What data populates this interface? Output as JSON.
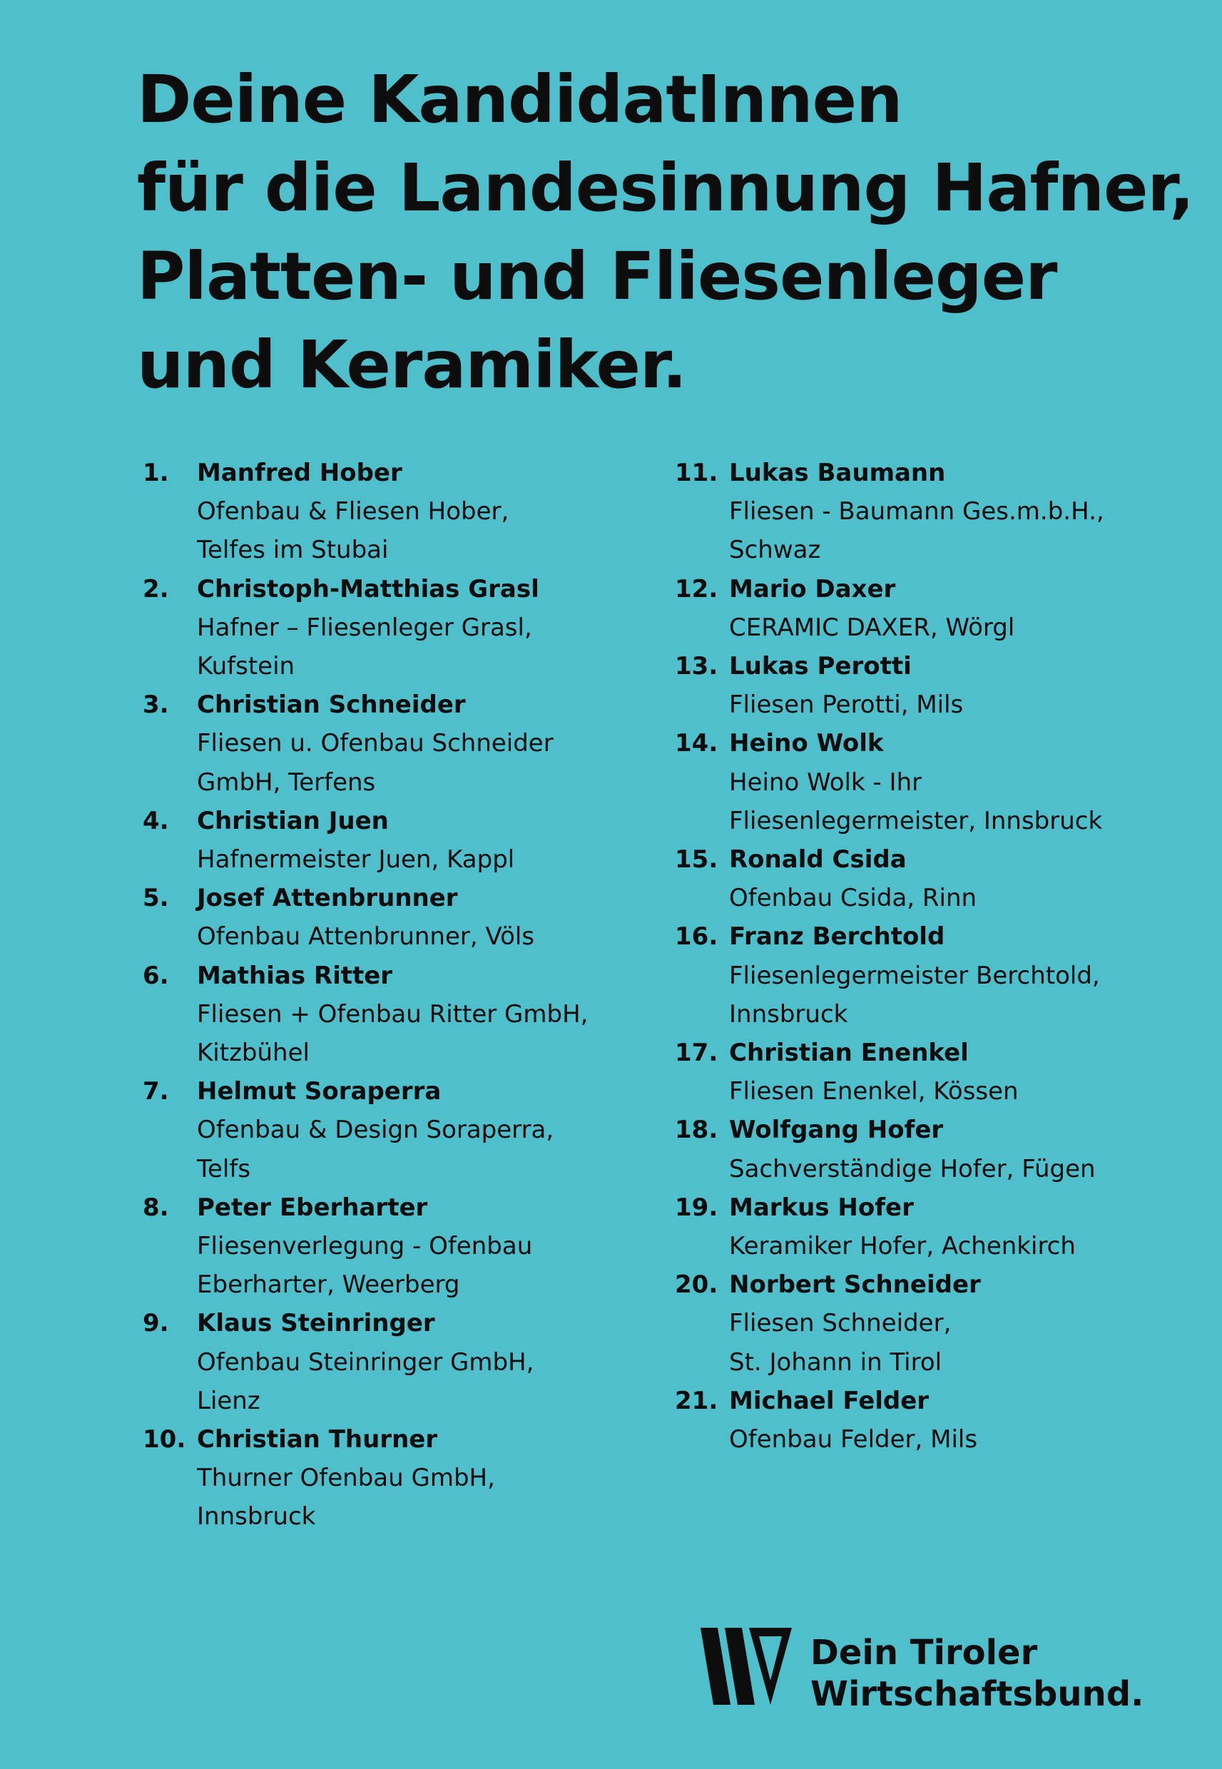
{
  "headline": {
    "lines": [
      "Deine KandidatInnen",
      "für die Landesinnung Hafner,",
      "Platten- und Fliesenleger",
      "und Keramiker."
    ]
  },
  "colors": {
    "background": "#4fbfcc",
    "text": "#0d0d0d"
  },
  "candidates": [
    {
      "num": "1.",
      "name": "Manfred Hober",
      "lines": [
        "Ofenbau & Fliesen Hober,",
        "Telfes im Stubai"
      ]
    },
    {
      "num": "2.",
      "name": "Christoph-Matthias Grasl",
      "lines": [
        "Hafner – Fliesenleger Grasl,",
        "Kufstein"
      ]
    },
    {
      "num": "3.",
      "name": "Christian Schneider",
      "lines": [
        "Fliesen u. Ofenbau Schneider",
        "GmbH, Terfens"
      ]
    },
    {
      "num": "4.",
      "name": "Christian Juen",
      "lines": [
        "Hafnermeister Juen, Kappl"
      ]
    },
    {
      "num": "5.",
      "name": "Josef Attenbrunner",
      "lines": [
        "Ofenbau Attenbrunner, Völs"
      ]
    },
    {
      "num": "6.",
      "name": "Mathias Ritter",
      "lines": [
        "Fliesen + Ofenbau Ritter GmbH,",
        "Kitzbühel"
      ]
    },
    {
      "num": "7.",
      "name": "Helmut Soraperra",
      "lines": [
        "Ofenbau & Design Soraperra,",
        "Telfs"
      ]
    },
    {
      "num": "8.",
      "name": "Peter Eberharter",
      "lines": [
        "Fliesenverlegung - Ofenbau",
        "Eberharter, Weerberg"
      ]
    },
    {
      "num": "9.",
      "name": "Klaus Steinringer",
      "lines": [
        "Ofenbau Steinringer GmbH,",
        "Lienz"
      ]
    },
    {
      "num": "10.",
      "name": "Christian Thurner",
      "lines": [
        "Thurner Ofenbau GmbH,",
        "Innsbruck"
      ]
    },
    {
      "num": "11.",
      "name": "Lukas Baumann",
      "lines": [
        "Fliesen - Baumann Ges.m.b.H.,",
        "Schwaz"
      ]
    },
    {
      "num": "12.",
      "name": "Mario Daxer",
      "lines": [
        "CERAMIC DAXER, Wörgl"
      ]
    },
    {
      "num": "13.",
      "name": "Lukas Perotti",
      "lines": [
        "Fliesen Perotti, Mils"
      ]
    },
    {
      "num": "14.",
      "name": "Heino Wolk",
      "lines": [
        "Heino Wolk - Ihr",
        "Fliesenlegermeister, Innsbruck"
      ]
    },
    {
      "num": "15.",
      "name": "Ronald Csida",
      "lines": [
        "Ofenbau Csida, Rinn"
      ]
    },
    {
      "num": "16.",
      "name": "Franz Berchtold",
      "lines": [
        "Fliesenlegermeister Berchtold,",
        "Innsbruck"
      ]
    },
    {
      "num": "17.",
      "name": "Christian Enenkel",
      "lines": [
        "Fliesen Enenkel, Kössen"
      ]
    },
    {
      "num": "18.",
      "name": "Wolfgang Hofer",
      "lines": [
        "Sachverständige Hofer, Fügen"
      ]
    },
    {
      "num": "19.",
      "name": "Markus Hofer",
      "lines": [
        "Keramiker Hofer, Achenkirch"
      ]
    },
    {
      "num": "20.",
      "name": "Norbert Schneider",
      "lines": [
        "Fliesen Schneider,",
        "St. Johann in Tirol"
      ]
    },
    {
      "num": "21.",
      "name": "Michael Felder",
      "lines": [
        "Ofenbau Felder, Mils"
      ]
    }
  ],
  "footer": {
    "logo_icon": "wirtschaftsbund-w-logo",
    "logo_line1": "Dein Tiroler",
    "logo_line2": "Wirtschaftsbund."
  }
}
